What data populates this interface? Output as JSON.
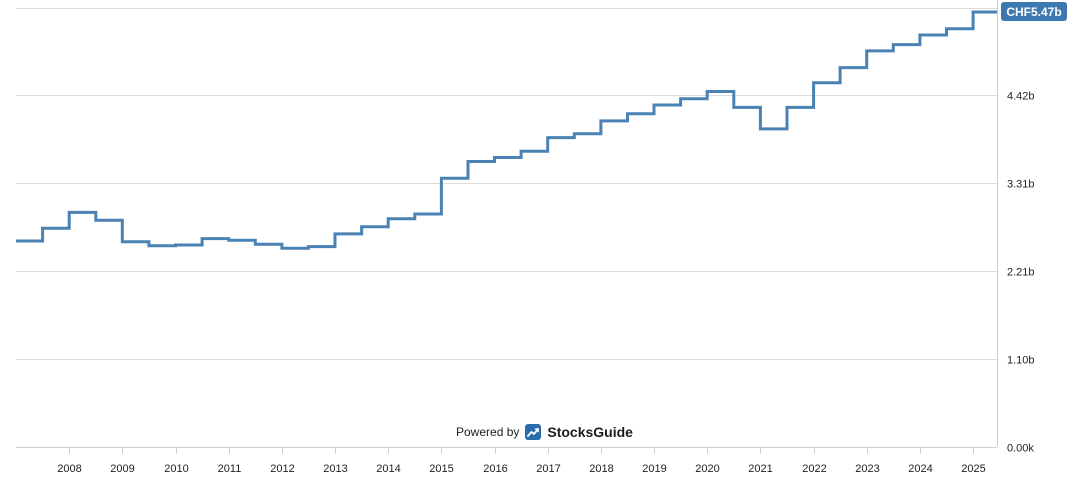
{
  "chart_data": {
    "type": "line",
    "step": true,
    "title": "",
    "xlabel": "",
    "ylabel": "",
    "line_color": "#4a82b4",
    "grid": "horizontal",
    "x_tick_labels": [
      "2008",
      "2009",
      "2010",
      "2011",
      "2012",
      "2013",
      "2014",
      "2015",
      "2016",
      "2017",
      "2018",
      "2019",
      "2020",
      "2021",
      "2022",
      "2023",
      "2024",
      "2025"
    ],
    "y_tick_labels": [
      "0.00k",
      "1.10b",
      "2.21b",
      "3.31b",
      "4.42b"
    ],
    "y_ticks": [
      0,
      1.105,
      2.21,
      3.315,
      4.42
    ],
    "ylim": [
      0,
      5.52
    ],
    "xlim": [
      2007.0,
      2025.45
    ],
    "last_value_label": "CHF5.47b",
    "last_value_color": "#3d78b0",
    "series": [
      {
        "x": [
          2007.0,
          2007.5,
          2008.0,
          2008.5,
          2009.0,
          2009.5,
          2010.0,
          2010.5,
          2011.0,
          2011.5,
          2012.0,
          2012.5,
          2013.0,
          2013.5,
          2014.0,
          2014.5,
          2015.0,
          2015.5,
          2016.0,
          2016.5,
          2017.0,
          2017.5,
          2018.0,
          2018.5,
          2019.0,
          2019.5,
          2020.0,
          2020.5,
          2021.0,
          2021.5,
          2022.0,
          2022.5,
          2023.0,
          2023.5,
          2024.0,
          2024.5,
          2025.0,
          2025.45
        ],
        "y": [
          2.59,
          2.75,
          2.95,
          2.85,
          2.58,
          2.53,
          2.54,
          2.62,
          2.6,
          2.55,
          2.5,
          2.52,
          2.68,
          2.77,
          2.87,
          2.93,
          3.38,
          3.59,
          3.64,
          3.72,
          3.89,
          3.94,
          4.1,
          4.19,
          4.3,
          4.38,
          4.47,
          4.27,
          4.0,
          4.27,
          4.58,
          4.77,
          4.98,
          5.06,
          5.18,
          5.26,
          5.47,
          5.47
        ]
      }
    ]
  },
  "footer": {
    "powered_by": "Powered by",
    "brand_name": "StocksGuide",
    "brand_color": "#2b6cb0"
  }
}
